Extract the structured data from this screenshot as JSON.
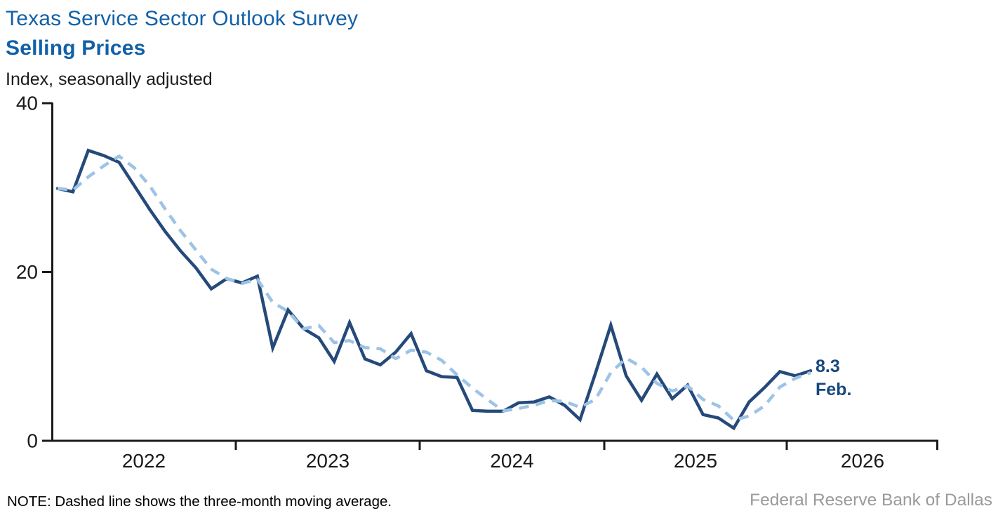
{
  "page": {
    "title_line1": "Texas Service Sector Outlook Survey",
    "title_line2": "Selling Prices",
    "subtitle": "Index, seasonally adjusted",
    "note": "NOTE: Dashed line shows the three-month moving average.",
    "source": "Federal Reserve Bank of Dallas"
  },
  "annotation": {
    "value": "8.3",
    "month": "Feb."
  },
  "colors": {
    "title": "#1160A8",
    "solid_line": "#254A7A",
    "dashed_line": "#9DC3E6",
    "annotation": "#17477E",
    "axis": "#1A1A1A",
    "tick_text": "#1A1A1A",
    "source_text": "#9A9A9A"
  },
  "chart_data": {
    "type": "line",
    "title": "Texas Service Sector Outlook Survey — Selling Prices",
    "ylabel": "Index, seasonally adjusted",
    "ylim": [
      0,
      40
    ],
    "yticks": [
      0,
      20,
      40
    ],
    "grid": false,
    "legend": "none (dashed explained in note)",
    "frequency": "monthly",
    "x_start_month": "2022-01",
    "x_end_month": "2026-02",
    "xtick_year_labels": [
      "2022",
      "2023",
      "2024",
      "2025",
      "2026"
    ],
    "series": [
      {
        "name": "Selling prices index",
        "style": "solid",
        "values": [
          29.9,
          29.5,
          34.4,
          33.8,
          33.0,
          30.2,
          27.4,
          24.8,
          22.5,
          20.5,
          18.0,
          19.2,
          18.7,
          19.5,
          11.0,
          15.5,
          13.3,
          12.2,
          9.4,
          14.0,
          9.7,
          9.0,
          10.5,
          12.7,
          8.3,
          7.6,
          7.5,
          3.6,
          3.5,
          3.5,
          4.5,
          4.6,
          5.2,
          4.2,
          2.5,
          8.0,
          13.7,
          7.7,
          4.8,
          7.9,
          5.0,
          6.6,
          3.1,
          2.7,
          1.5,
          4.6,
          6.3,
          8.2,
          7.7,
          8.3
        ]
      },
      {
        "name": "Three-month moving average",
        "style": "dashed",
        "derived": "trailing_3_month_average_of_first_series"
      }
    ],
    "last_point": {
      "value": 8.3,
      "label": "8.3",
      "month_label": "Feb."
    }
  }
}
